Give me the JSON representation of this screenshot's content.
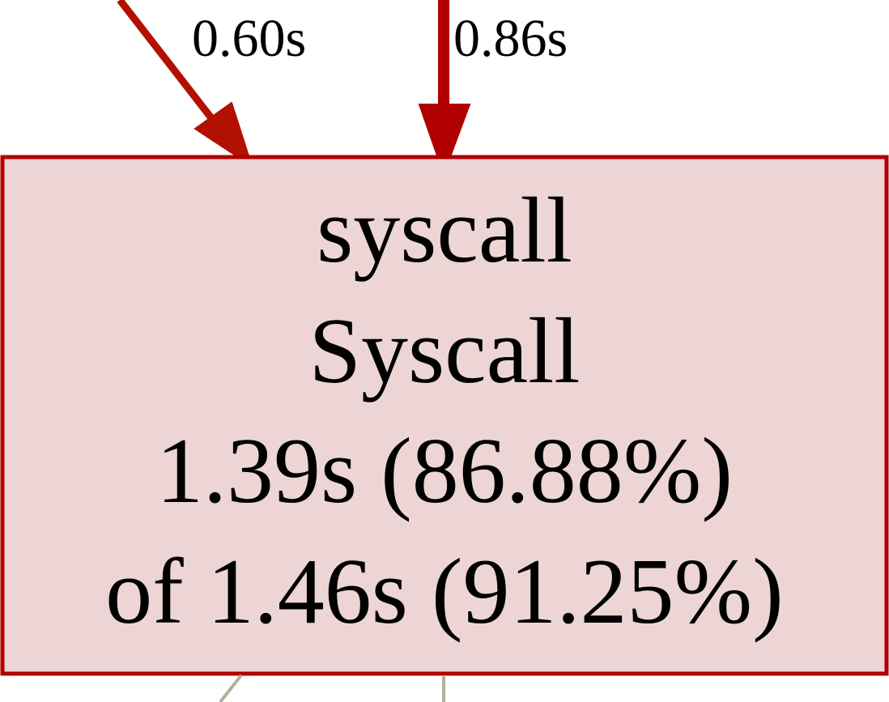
{
  "graph": {
    "node": {
      "name": "syscall",
      "function": "Syscall",
      "flat": "1.39s (86.88%)",
      "cumulative": "of 1.46s (91.25%)",
      "fill_color": "#edd5d5",
      "border_color": "#b20000"
    },
    "incoming_edges": [
      {
        "label": "0.60s",
        "color": "#b21000"
      },
      {
        "label": "0.86s",
        "color": "#b20000"
      }
    ],
    "outgoing_edges": [
      {
        "color": "#b2b09a"
      },
      {
        "color": "#b2b09a"
      }
    ]
  }
}
